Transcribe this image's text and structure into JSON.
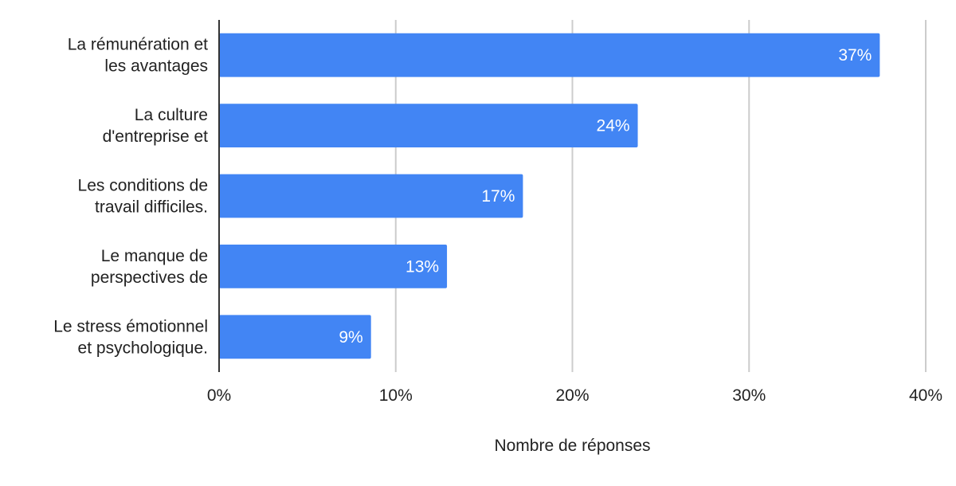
{
  "chart_data": {
    "type": "bar",
    "orientation": "horizontal",
    "categories": [
      [
        "La rémunération et",
        "les avantages"
      ],
      [
        "La culture",
        "d'entreprise et"
      ],
      [
        "Les conditions de",
        "travail difficiles."
      ],
      [
        "Le manque de",
        "perspectives de"
      ],
      [
        "Le stress émotionnel",
        "et psychologique."
      ]
    ],
    "values": [
      37.4,
      23.7,
      17.2,
      12.9,
      8.6
    ],
    "data_labels": [
      "37%",
      "24%",
      "17%",
      "13%",
      "9%"
    ],
    "xlabel": "Nombre de réponses",
    "ylabel": "",
    "xlim": [
      0,
      40
    ],
    "xticks": [
      0,
      10,
      20,
      30,
      40
    ],
    "xtick_labels": [
      "0%",
      "10%",
      "20%",
      "30%",
      "40%"
    ],
    "grid": "vertical",
    "legend": "none",
    "bar_color": "#4285f4"
  }
}
